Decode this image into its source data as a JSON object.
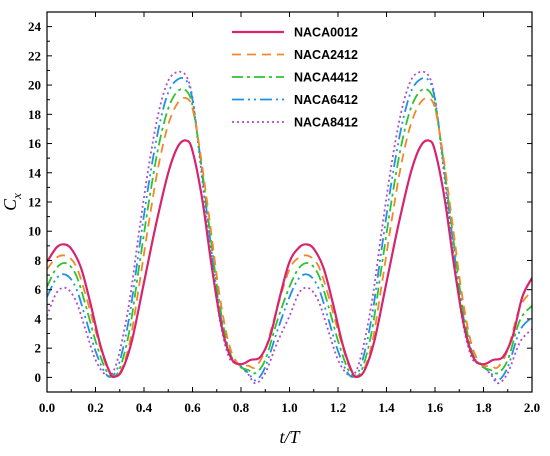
{
  "chart_data": {
    "type": "line",
    "title": "",
    "xlabel": "t/T",
    "ylabel": "Cx",
    "xlim": [
      0.0,
      2.0
    ],
    "ylim": [
      -1,
      25
    ],
    "xticks": [
      "0.0",
      "0.2",
      "0.4",
      "0.6",
      "0.8",
      "1.0",
      "1.2",
      "1.4",
      "1.6",
      "1.8",
      "2.0"
    ],
    "yticks": [
      "0",
      "2",
      "4",
      "6",
      "8",
      "10",
      "12",
      "14",
      "16",
      "18",
      "20",
      "22",
      "24"
    ],
    "grid": false,
    "legend_position": "top-center",
    "series": [
      {
        "name": "NACA0012",
        "color": "#d6246e",
        "dash": "solid",
        "x": [
          0.0,
          0.04,
          0.07,
          0.1,
          0.14,
          0.18,
          0.22,
          0.26,
          0.28,
          0.31,
          0.35,
          0.4,
          0.45,
          0.5,
          0.54,
          0.575,
          0.6,
          0.64,
          0.68,
          0.72,
          0.76,
          0.8,
          0.84,
          0.88,
          0.92,
          0.96,
          1.0,
          1.04,
          1.07,
          1.1,
          1.14,
          1.18,
          1.22,
          1.26,
          1.28,
          1.31,
          1.35,
          1.4,
          1.45,
          1.5,
          1.54,
          1.575,
          1.6,
          1.64,
          1.68,
          1.72,
          1.76,
          1.8,
          1.84,
          1.88,
          1.92,
          1.96,
          2.0
        ],
        "y": [
          7.9,
          8.9,
          9.1,
          8.8,
          7.5,
          5.0,
          2.2,
          0.3,
          0.05,
          0.5,
          2.5,
          6.5,
          10.5,
          14.0,
          15.8,
          16.2,
          15.5,
          12.2,
          7.5,
          3.5,
          1.3,
          0.9,
          1.2,
          1.4,
          2.8,
          5.5,
          7.9,
          8.9,
          9.1,
          8.8,
          7.5,
          5.0,
          2.2,
          0.3,
          0.05,
          0.5,
          2.5,
          6.5,
          10.5,
          14.0,
          15.8,
          16.2,
          15.5,
          12.2,
          7.5,
          3.5,
          1.3,
          0.9,
          1.2,
          1.4,
          2.8,
          5.5,
          6.8
        ]
      },
      {
        "name": "NACA2412",
        "color": "#f0882a",
        "dash": "9,6",
        "x": [
          0.0,
          0.04,
          0.08,
          0.12,
          0.16,
          0.2,
          0.24,
          0.27,
          0.3,
          0.34,
          0.38,
          0.42,
          0.46,
          0.5,
          0.54,
          0.575,
          0.6,
          0.63,
          0.67,
          0.71,
          0.75,
          0.79,
          0.83,
          0.86,
          0.9,
          0.95,
          1.0,
          1.04,
          1.08,
          1.12,
          1.16,
          1.2,
          1.24,
          1.27,
          1.3,
          1.34,
          1.38,
          1.42,
          1.46,
          1.5,
          1.54,
          1.575,
          1.6,
          1.63,
          1.67,
          1.71,
          1.75,
          1.79,
          1.83,
          1.86,
          1.9,
          1.95,
          2.0
        ],
        "y": [
          7.4,
          8.2,
          8.3,
          7.6,
          5.6,
          3.2,
          1.0,
          0.1,
          0.3,
          2.3,
          6.3,
          10.6,
          14.5,
          17.3,
          18.8,
          19.1,
          18.4,
          15.6,
          10.8,
          5.8,
          2.3,
          0.9,
          0.8,
          0.7,
          1.9,
          4.8,
          7.4,
          8.2,
          8.3,
          7.6,
          5.6,
          3.2,
          1.0,
          0.1,
          0.3,
          2.3,
          6.3,
          10.6,
          14.5,
          17.3,
          18.8,
          19.1,
          18.4,
          15.6,
          10.8,
          5.8,
          2.3,
          0.9,
          0.8,
          0.7,
          1.9,
          4.8,
          5.9
        ]
      },
      {
        "name": "NACA4412",
        "color": "#2ec32e",
        "dash": "11,4,3,4",
        "x": [
          0.0,
          0.04,
          0.08,
          0.12,
          0.16,
          0.2,
          0.24,
          0.27,
          0.3,
          0.34,
          0.38,
          0.42,
          0.46,
          0.5,
          0.54,
          0.575,
          0.6,
          0.63,
          0.67,
          0.71,
          0.75,
          0.79,
          0.83,
          0.86,
          0.9,
          0.95,
          1.0,
          1.04,
          1.08,
          1.12,
          1.16,
          1.2,
          1.24,
          1.27,
          1.3,
          1.34,
          1.38,
          1.42,
          1.46,
          1.5,
          1.54,
          1.575,
          1.6,
          1.63,
          1.67,
          1.71,
          1.75,
          1.79,
          1.83,
          1.86,
          1.9,
          1.95,
          2.0
        ],
        "y": [
          6.2,
          7.5,
          7.8,
          7.0,
          4.9,
          2.5,
          0.6,
          0.05,
          0.6,
          3.2,
          7.6,
          12.0,
          15.8,
          18.4,
          19.6,
          19.6,
          18.6,
          15.4,
          10.2,
          5.2,
          1.9,
          0.8,
          0.5,
          0.3,
          1.2,
          3.9,
          6.2,
          7.5,
          7.8,
          7.0,
          4.9,
          2.5,
          0.6,
          0.05,
          0.6,
          3.2,
          7.6,
          12.0,
          15.8,
          18.4,
          19.6,
          19.6,
          18.6,
          15.4,
          10.2,
          5.2,
          1.9,
          0.8,
          0.5,
          0.3,
          1.2,
          3.9,
          4.9
        ]
      },
      {
        "name": "NACA6412",
        "color": "#1e90e6",
        "dash": "12,4,2,4,2,4",
        "x": [
          0.0,
          0.04,
          0.08,
          0.12,
          0.16,
          0.2,
          0.24,
          0.27,
          0.3,
          0.34,
          0.38,
          0.42,
          0.46,
          0.5,
          0.54,
          0.575,
          0.6,
          0.63,
          0.67,
          0.71,
          0.75,
          0.79,
          0.83,
          0.86,
          0.9,
          0.95,
          1.0,
          1.04,
          1.08,
          1.12,
          1.16,
          1.2,
          1.24,
          1.27,
          1.3,
          1.34,
          1.38,
          1.42,
          1.46,
          1.5,
          1.54,
          1.575,
          1.6,
          1.63,
          1.67,
          1.71,
          1.75,
          1.79,
          1.83,
          1.86,
          1.9,
          1.95,
          2.0
        ],
        "y": [
          5.5,
          6.8,
          7.0,
          6.1,
          4.0,
          1.8,
          0.3,
          0.1,
          1.1,
          4.2,
          8.8,
          13.3,
          17.0,
          19.5,
          20.4,
          20.3,
          19.0,
          15.3,
          9.8,
          4.8,
          1.7,
          0.9,
          0.3,
          -0.2,
          0.7,
          3.2,
          5.5,
          6.8,
          7.0,
          6.1,
          4.0,
          1.8,
          0.3,
          0.1,
          1.1,
          4.2,
          8.8,
          13.3,
          17.0,
          19.5,
          20.4,
          20.3,
          19.0,
          15.3,
          9.8,
          4.8,
          1.7,
          0.9,
          0.3,
          -0.2,
          0.7,
          3.2,
          4.1
        ]
      },
      {
        "name": "NACA8412",
        "color": "#b04bc8",
        "dash": "2,3",
        "x": [
          0.0,
          0.04,
          0.08,
          0.12,
          0.16,
          0.2,
          0.24,
          0.27,
          0.3,
          0.34,
          0.38,
          0.42,
          0.46,
          0.5,
          0.54,
          0.575,
          0.6,
          0.63,
          0.67,
          0.71,
          0.75,
          0.79,
          0.83,
          0.86,
          0.9,
          0.95,
          1.0,
          1.04,
          1.08,
          1.12,
          1.16,
          1.2,
          1.24,
          1.27,
          1.3,
          1.34,
          1.38,
          1.42,
          1.46,
          1.5,
          1.54,
          1.575,
          1.6,
          1.63,
          1.67,
          1.71,
          1.75,
          1.79,
          1.83,
          1.86,
          1.9,
          1.95,
          2.0
        ],
        "y": [
          4.2,
          5.8,
          6.1,
          5.2,
          3.2,
          1.2,
          0.2,
          0.3,
          1.8,
          5.2,
          10.0,
          14.5,
          18.1,
          20.3,
          20.9,
          20.6,
          19.1,
          15.0,
          9.2,
          4.2,
          1.4,
          0.9,
          0.2,
          -0.4,
          0.3,
          2.4,
          4.2,
          5.8,
          6.1,
          5.2,
          3.2,
          1.2,
          0.2,
          0.3,
          1.8,
          5.2,
          10.0,
          14.5,
          18.1,
          20.3,
          20.9,
          20.6,
          19.1,
          15.0,
          9.2,
          4.2,
          1.4,
          0.9,
          0.2,
          -0.4,
          0.3,
          2.4,
          3.3
        ]
      }
    ]
  }
}
